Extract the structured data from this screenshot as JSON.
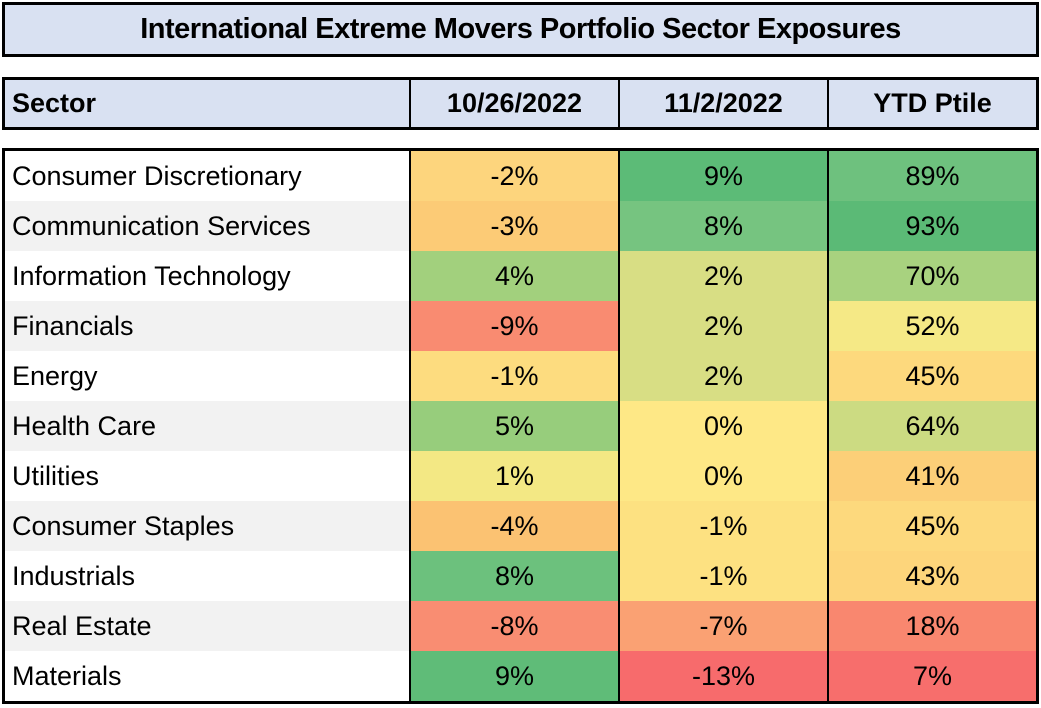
{
  "title": "International Extreme Movers Portfolio Sector Exposures",
  "table": {
    "columns": [
      "Sector",
      "10/26/2022",
      "11/2/2022",
      "YTD Ptile"
    ],
    "rows": [
      {
        "sector": "Consumer Discretionary",
        "values": [
          "-2%",
          "9%",
          "89%"
        ],
        "colors": [
          "#FDD57D",
          "#5CBB77",
          "#6EC17E"
        ]
      },
      {
        "sector": "Communication Services",
        "values": [
          "-3%",
          "8%",
          "93%"
        ],
        "colors": [
          "#FCCB76",
          "#76C480",
          "#5BBA76"
        ]
      },
      {
        "sector": "Information Technology",
        "values": [
          "4%",
          "2%",
          "70%"
        ],
        "colors": [
          "#A2D07D",
          "#D8DE84",
          "#A8D27F"
        ]
      },
      {
        "sector": "Financials",
        "values": [
          "-9%",
          "2%",
          "52%"
        ],
        "colors": [
          "#F98B71",
          "#D8DE84",
          "#F5E986"
        ]
      },
      {
        "sector": "Energy",
        "values": [
          "-1%",
          "2%",
          "45%"
        ],
        "colors": [
          "#FDDC7F",
          "#D8DE84",
          "#FDD97D"
        ]
      },
      {
        "sector": "Health Care",
        "values": [
          "5%",
          "0%",
          "64%"
        ],
        "colors": [
          "#97CD7C",
          "#FEE886",
          "#CCDB82"
        ]
      },
      {
        "sector": "Utilities",
        "values": [
          "1%",
          "0%",
          "41%"
        ],
        "colors": [
          "#F3E884",
          "#FEE886",
          "#FCCF78"
        ]
      },
      {
        "sector": "Consumer Staples",
        "values": [
          "-4%",
          "-1%",
          "45%"
        ],
        "colors": [
          "#FBC272",
          "#FDE181",
          "#FDD97D"
        ]
      },
      {
        "sector": "Industrials",
        "values": [
          "8%",
          "-1%",
          "43%"
        ],
        "colors": [
          "#6CC17D",
          "#FDE181",
          "#FDD57B"
        ]
      },
      {
        "sector": "Real Estate",
        "values": [
          "-8%",
          "-7%",
          "18%"
        ],
        "colors": [
          "#F98D72",
          "#FAA173",
          "#F9876F"
        ]
      },
      {
        "sector": "Materials",
        "values": [
          "9%",
          "-13%",
          "7%"
        ],
        "colors": [
          "#5FBC78",
          "#F76B6C",
          "#F76E6C"
        ]
      }
    ]
  },
  "colors": {
    "panel_bg": "#D9E1F2",
    "alt_row_bg": "#F2F2F2",
    "border": "#000000",
    "scale_min": "#F8696B",
    "scale_mid": "#FFEB84",
    "scale_max": "#63BE7B"
  },
  "chart_data": {
    "type": "table",
    "title": "International Extreme Movers Portfolio Sector Exposures",
    "columns": [
      "Sector",
      "10/26/2022",
      "11/2/2022",
      "YTD Ptile"
    ],
    "units": "percent",
    "rows": [
      [
        "Consumer Discretionary",
        -2,
        9,
        89
      ],
      [
        "Communication Services",
        -3,
        8,
        93
      ],
      [
        "Information Technology",
        4,
        2,
        70
      ],
      [
        "Financials",
        -9,
        2,
        52
      ],
      [
        "Energy",
        -1,
        2,
        45
      ],
      [
        "Health Care",
        5,
        0,
        64
      ],
      [
        "Utilities",
        1,
        0,
        41
      ],
      [
        "Consumer Staples",
        -4,
        -1,
        45
      ],
      [
        "Industrials",
        8,
        -1,
        43
      ],
      [
        "Real Estate",
        -8,
        -7,
        18
      ],
      [
        "Materials",
        9,
        -13,
        7
      ]
    ],
    "color_scale": {
      "min_color": "#F8696B",
      "mid_color": "#FFEB84",
      "max_color": "#63BE7B"
    },
    "legend_position": "none",
    "grid": false
  }
}
